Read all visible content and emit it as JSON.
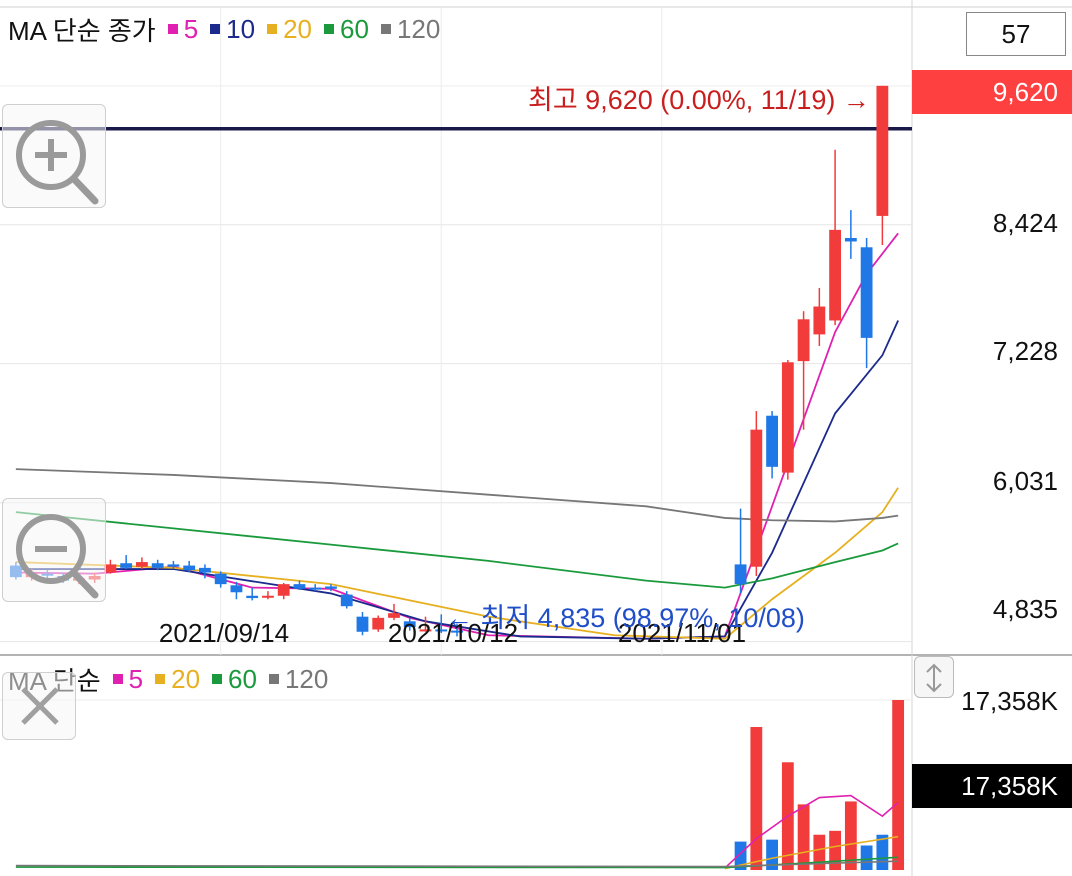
{
  "chart_data": [
    {
      "type": "candlestick",
      "legend": {
        "title": "MA 단순 종가",
        "items": [
          {
            "label": "5",
            "color": "#e020b0"
          },
          {
            "label": "10",
            "color": "#1b2a8c"
          },
          {
            "label": "20",
            "color": "#e6b020"
          },
          {
            "label": "60",
            "color": "#1a9a3c"
          },
          {
            "label": "120",
            "color": "#777777"
          }
        ]
      },
      "period_box": "57",
      "y_tick_labels": [
        "8,424",
        "7,228",
        "6,031",
        "4,835"
      ],
      "y_ticks": [
        8424,
        7228,
        6031,
        4835
      ],
      "ylim": [
        4720,
        10290
      ],
      "x_tick_labels": [
        {
          "label": "2021/09/14",
          "index": 13
        },
        {
          "label": "2021/10/12",
          "index": 27
        },
        {
          "label": "2021/11/01",
          "index": 41
        }
      ],
      "n_slots": 57,
      "current_price_label": "9,620",
      "current_price": 9620,
      "reference_price": 9250,
      "high_annotation": {
        "text": "최고 9,620 (0.00%, 11/19) →",
        "value": 9620
      },
      "low_annotation": {
        "text": "← 최저 4,835 (98.97%, 10/08)",
        "value": 4835
      },
      "candles": [
        {
          "o": 5490,
          "c": 5390,
          "h": 5520,
          "l": 5370
        },
        {
          "o": 5390,
          "c": 5420,
          "h": 5460,
          "l": 5360
        },
        {
          "o": 5420,
          "c": 5410,
          "h": 5450,
          "l": 5370
        },
        {
          "o": 5400,
          "c": 5360,
          "h": 5430,
          "l": 5340
        },
        {
          "o": 5360,
          "c": 5380,
          "h": 5410,
          "l": 5330
        },
        {
          "o": 5370,
          "c": 5400,
          "h": 5430,
          "l": 5340
        },
        {
          "o": 5430,
          "c": 5500,
          "h": 5540,
          "l": 5420
        },
        {
          "o": 5510,
          "c": 5470,
          "h": 5580,
          "l": 5460
        },
        {
          "o": 5480,
          "c": 5520,
          "h": 5560,
          "l": 5460
        },
        {
          "o": 5510,
          "c": 5470,
          "h": 5540,
          "l": 5450
        },
        {
          "o": 5500,
          "c": 5480,
          "h": 5530,
          "l": 5460
        },
        {
          "o": 5490,
          "c": 5450,
          "h": 5530,
          "l": 5430
        },
        {
          "o": 5470,
          "c": 5430,
          "h": 5500,
          "l": 5380
        },
        {
          "o": 5420,
          "c": 5330,
          "h": 5440,
          "l": 5300
        },
        {
          "o": 5320,
          "c": 5260,
          "h": 5350,
          "l": 5200
        },
        {
          "o": 5230,
          "c": 5210,
          "h": 5300,
          "l": 5190
        },
        {
          "o": 5220,
          "c": 5230,
          "h": 5270,
          "l": 5200
        },
        {
          "o": 5230,
          "c": 5330,
          "h": 5340,
          "l": 5200
        },
        {
          "o": 5330,
          "c": 5290,
          "h": 5360,
          "l": 5280
        },
        {
          "o": 5300,
          "c": 5290,
          "h": 5330,
          "l": 5270
        },
        {
          "o": 5310,
          "c": 5290,
          "h": 5330,
          "l": 5270
        },
        {
          "o": 5240,
          "c": 5140,
          "h": 5270,
          "l": 5120
        },
        {
          "o": 5050,
          "c": 4920,
          "h": 5090,
          "l": 4890
        },
        {
          "o": 4940,
          "c": 5040,
          "h": 5060,
          "l": 4920
        },
        {
          "o": 5040,
          "c": 5080,
          "h": 5160,
          "l": 5020
        },
        {
          "o": 5010,
          "c": 4960,
          "h": 5040,
          "l": 4930
        },
        {
          "o": 4930,
          "c": 4940,
          "h": 5050,
          "l": 4920
        },
        {
          "o": 4940,
          "c": 4930,
          "h": 5070,
          "l": 4910
        },
        {
          "o": 4930,
          "c": 4920,
          "h": 4990,
          "l": 4880
        }
      ],
      "candles_late": [
        {
          "slot": 46,
          "o": 5500,
          "c": 5330,
          "h": 5980,
          "l": 5250
        },
        {
          "slot": 47,
          "o": 5480,
          "c": 6660,
          "h": 6820,
          "l": 5400
        },
        {
          "slot": 48,
          "o": 6780,
          "c": 6340,
          "h": 6820,
          "l": 6240
        },
        {
          "slot": 49,
          "o": 6290,
          "c": 7240,
          "h": 7260,
          "l": 6230
        },
        {
          "slot": 50,
          "o": 7250,
          "c": 7610,
          "h": 7680,
          "l": 6660
        },
        {
          "slot": 51,
          "o": 7480,
          "c": 7720,
          "h": 7880,
          "l": 7380
        },
        {
          "slot": 52,
          "o": 7600,
          "c": 8380,
          "h": 9070,
          "l": 7560
        },
        {
          "slot": 53,
          "o": 8310,
          "c": 8280,
          "h": 8550,
          "l": 8130
        },
        {
          "slot": 54,
          "o": 8230,
          "c": 7450,
          "h": 8310,
          "l": 7190
        },
        {
          "slot": 55,
          "o": 8500,
          "c": 9620,
          "h": 9620,
          "l": 8250
        }
      ],
      "ma": {
        "ma5": [
          [
            0,
            5430
          ],
          [
            5,
            5420
          ],
          [
            10,
            5480
          ],
          [
            15,
            5300
          ],
          [
            20,
            5290
          ],
          [
            25,
            5040
          ],
          [
            30,
            4890
          ],
          [
            40,
            4860
          ],
          [
            45,
            4880
          ],
          [
            48,
            6000
          ],
          [
            52,
            7500
          ],
          [
            54,
            8000
          ],
          [
            56,
            8350
          ]
        ],
        "ma10": [
          [
            0,
            5460
          ],
          [
            10,
            5460
          ],
          [
            20,
            5250
          ],
          [
            26,
            5010
          ],
          [
            32,
            4880
          ],
          [
            40,
            4860
          ],
          [
            45,
            4880
          ],
          [
            48,
            5600
          ],
          [
            52,
            6800
          ],
          [
            55,
            7300
          ],
          [
            56,
            7600
          ]
        ],
        "ma20": [
          [
            0,
            5520
          ],
          [
            10,
            5470
          ],
          [
            20,
            5330
          ],
          [
            30,
            5050
          ],
          [
            38,
            4890
          ],
          [
            45,
            4860
          ],
          [
            48,
            5200
          ],
          [
            52,
            5600
          ],
          [
            55,
            5950
          ],
          [
            56,
            6160
          ]
        ],
        "ma60": [
          [
            0,
            5950
          ],
          [
            10,
            5810
          ],
          [
            20,
            5670
          ],
          [
            30,
            5530
          ],
          [
            40,
            5360
          ],
          [
            45,
            5300
          ],
          [
            48,
            5380
          ],
          [
            52,
            5520
          ],
          [
            55,
            5620
          ],
          [
            56,
            5680
          ]
        ],
        "ma120": [
          [
            0,
            6320
          ],
          [
            10,
            6270
          ],
          [
            20,
            6200
          ],
          [
            30,
            6100
          ],
          [
            40,
            6000
          ],
          [
            45,
            5900
          ],
          [
            48,
            5880
          ],
          [
            52,
            5870
          ],
          [
            55,
            5900
          ],
          [
            56,
            5920
          ]
        ]
      }
    },
    {
      "type": "bar",
      "legend": {
        "title": "MA 단순",
        "items": [
          {
            "label": "5",
            "color": "#e020b0"
          },
          {
            "label": "20",
            "color": "#e6b020"
          },
          {
            "label": "60",
            "color": "#1a9a3c"
          },
          {
            "label": "120",
            "color": "#777777"
          }
        ]
      },
      "y_tick_label": "17,358K",
      "current_volume_label": "17,358K",
      "ylim": [
        0,
        17358
      ],
      "volumes": [
        {
          "slot": 46,
          "v": 2900,
          "up": false
        },
        {
          "slot": 47,
          "v": 14600,
          "up": true
        },
        {
          "slot": 48,
          "v": 3100,
          "up": false
        },
        {
          "slot": 49,
          "v": 11000,
          "up": true
        },
        {
          "slot": 50,
          "v": 6700,
          "up": true
        },
        {
          "slot": 51,
          "v": 3600,
          "up": true
        },
        {
          "slot": 52,
          "v": 4000,
          "up": true
        },
        {
          "slot": 53,
          "v": 7000,
          "up": true
        },
        {
          "slot": 54,
          "v": 2500,
          "up": false
        },
        {
          "slot": 55,
          "v": 3600,
          "up": false
        },
        {
          "slot": 56,
          "v": 17358,
          "up": true
        }
      ],
      "ma5": [
        [
          45,
          200
        ],
        [
          47,
          3200
        ],
        [
          49,
          5500
        ],
        [
          51,
          7400
        ],
        [
          53,
          7600
        ],
        [
          55,
          5500
        ],
        [
          56,
          6900
        ]
      ],
      "ma20": [
        [
          45,
          150
        ],
        [
          48,
          1200
        ],
        [
          52,
          2400
        ],
        [
          56,
          3400
        ]
      ],
      "ma60": [
        [
          0,
          300
        ],
        [
          45,
          250
        ],
        [
          50,
          700
        ],
        [
          56,
          1300
        ]
      ],
      "ma120": [
        [
          0,
          450
        ],
        [
          45,
          350
        ],
        [
          50,
          600
        ],
        [
          56,
          900
        ]
      ]
    }
  ]
}
